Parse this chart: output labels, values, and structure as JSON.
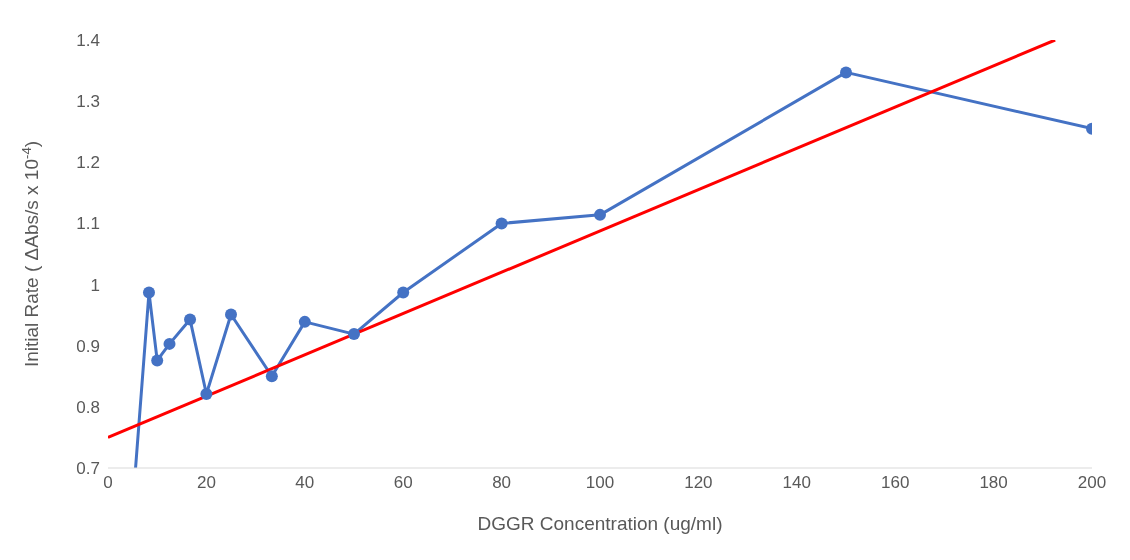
{
  "chart_data": {
    "type": "line",
    "xlabel": "DGGR Concentration (ug/ml)",
    "ylabel": "Initial Rate ( ΔAbs/s x 10$^{-4}$)",
    "xlim": [
      0,
      200
    ],
    "xticks": [
      0,
      20,
      40,
      60,
      80,
      100,
      120,
      140,
      160,
      180,
      200
    ],
    "ylim": [
      0.7,
      1.4
    ],
    "yticks": [
      0.7,
      0.8,
      0.9,
      1,
      1.1,
      1.2,
      1.3,
      1.4
    ],
    "grid": false,
    "legend": false,
    "marker": "circle",
    "line_style": "solid",
    "series": [
      {
        "color": "#4472c4",
        "x": [
          5.6,
          8.33,
          10,
          12.5,
          16.67,
          20,
          25,
          33.3,
          40,
          50,
          60,
          80,
          100,
          150,
          200
        ],
        "values": [
          0.7,
          0.987,
          0.876,
          0.903,
          0.943,
          0.821,
          0.951,
          0.85,
          0.939,
          0.919,
          0.987,
          1.1,
          1.114,
          1.347,
          1.255
        ]
      },
      {
        "type": "line",
        "color": "#ff0000",
        "marker": "none",
        "x": [
          0,
          192.5
        ],
        "values": [
          0.75,
          1.4
        ]
      }
    ]
  }
}
